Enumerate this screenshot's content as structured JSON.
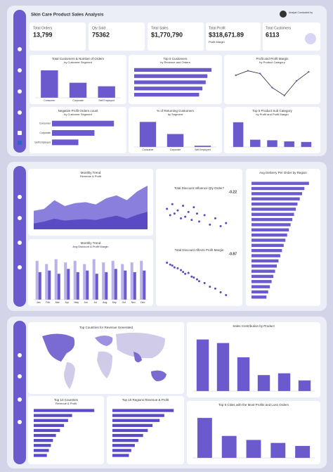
{
  "header": {
    "title": "Skin Care Product Sales Analysis",
    "analyst": "Analyst Conducted by"
  },
  "kpis": [
    {
      "label": "Total Orders",
      "value": "13,799"
    },
    {
      "label": "Qty Sold",
      "value": "75362"
    },
    {
      "label": "Total Sales",
      "value": "$1,770,790"
    },
    {
      "label": "Total Profit",
      "value": "$318,671.89",
      "sub": "Profit Margin"
    },
    {
      "label": "Total Customers",
      "value": "6113"
    }
  ],
  "map": {
    "title": "Top Countries for Revenue Generated"
  },
  "chart_data": [
    {
      "type": "bar",
      "title": "Total Customers & Number of Orders",
      "subtitle": "by Customer Segment",
      "categories": [
        "Consumer",
        "Corporate",
        "Self Employed"
      ],
      "values": [
        3100,
        1700,
        1300
      ],
      "color": "#6a5acd",
      "ylim": [
        0,
        3500
      ]
    },
    {
      "type": "hbar",
      "title": "Top 5 Customers",
      "subtitle": "by Revenue and Orders",
      "categories": [
        null,
        null,
        null,
        null,
        null
      ],
      "values": [
        9400,
        8900,
        8700,
        8300,
        7900
      ],
      "color": "#6a5acd",
      "xlim": [
        0,
        10000
      ]
    },
    {
      "type": "line",
      "title": "Profit and Profit Margin",
      "subtitle": "by Product Category",
      "categories": [
        null,
        null,
        null,
        null,
        null,
        null,
        null
      ],
      "values": [
        30,
        38,
        33,
        8,
        -6,
        20,
        36
      ],
      "color": "#2b2b2b",
      "ylim": [
        -10,
        45
      ]
    },
    {
      "type": "hbar",
      "title": "Negative Profit Orders count",
      "subtitle": "by Customer Segment",
      "title_color": "#c0392b",
      "categories": [
        "Consumer",
        "Corporate",
        "Self Employed"
      ],
      "values": [
        540,
        370,
        230
      ],
      "color": "#6a5acd",
      "xlim": [
        0,
        600
      ]
    },
    {
      "type": "bar",
      "title": "% of Returning Customers",
      "subtitle": "by Segment",
      "categories": [
        "Consumer",
        "Corporate",
        "Self Employed"
      ],
      "values": [
        58,
        30,
        3
      ],
      "color": "#6a5acd",
      "ylim": [
        0,
        65
      ]
    },
    {
      "type": "bar",
      "title": "Top 5 Product Sub Category",
      "subtitle": "by Profit and Profit Margin",
      "categories": [
        null,
        null,
        null,
        null,
        null
      ],
      "values": [
        44,
        13,
        12,
        10,
        9
      ],
      "color": "#6a5acd",
      "ylim": [
        0,
        50
      ]
    },
    {
      "type": "area",
      "title": "Monthly Trend",
      "subtitle": "Revenue & Profit",
      "categories": [
        null,
        null,
        null,
        null,
        null,
        null,
        null,
        null,
        null,
        null,
        null,
        null
      ],
      "series": [
        {
          "color": "#8a7fdc",
          "values": [
            95,
            105,
            150,
            120,
            135,
            140,
            128,
            160,
            175,
            150,
            195,
            225
          ]
        },
        {
          "color": "#5a4bc4",
          "values": [
            30,
            40,
            55,
            45,
            50,
            52,
            48,
            60,
            70,
            55,
            75,
            90
          ]
        }
      ],
      "ylim": [
        0,
        250
      ]
    },
    {
      "type": "bar",
      "title": "Monthly Trend",
      "subtitle": "Avg Discount & Profit Margin",
      "categories": [
        "Jan",
        "Feb",
        "Mar",
        "Apr",
        "May",
        "Jun",
        "Jul",
        "Aug",
        "Sep",
        "Oct",
        "Nov",
        "Dec"
      ],
      "series": [
        {
          "color": "#b9b3ea",
          "values": [
            24,
            22,
            25,
            23,
            24,
            22,
            25,
            23,
            24,
            22,
            23,
            24
          ]
        },
        {
          "color": "#6a5acd",
          "values": [
            17,
            18,
            16,
            19,
            17,
            18,
            16,
            17,
            19,
            18,
            17,
            18
          ]
        }
      ],
      "ylim": [
        0,
        30
      ]
    },
    {
      "type": "scatter",
      "title": "Total Discount Influence Qty Order?",
      "annotation": "-0.22",
      "x": [
        0.05,
        0.08,
        0.1,
        0.12,
        0.15,
        0.18,
        0.2,
        0.22,
        0.25,
        0.28,
        0.3,
        0.33,
        0.35,
        0.4,
        0.45,
        0.5,
        0.55,
        0.6
      ],
      "values": [
        4.2,
        3.8,
        4.5,
        3.9,
        4.1,
        3.6,
        4.4,
        3.7,
        4.0,
        3.5,
        4.3,
        3.9,
        3.4,
        3.8,
        3.2,
        3.6,
        3.1,
        3.3
      ],
      "color": "#5a4bc4",
      "xlim": [
        0,
        0.7
      ],
      "ylim": [
        2.5,
        5
      ]
    },
    {
      "type": "scatter",
      "title": "Total Discount Affects Profit Margin",
      "annotation": "-0.87",
      "x": [
        0.05,
        0.08,
        0.1,
        0.12,
        0.15,
        0.18,
        0.2,
        0.22,
        0.25,
        0.28,
        0.3,
        0.33,
        0.35,
        0.4,
        0.45,
        0.5,
        0.55,
        0.6
      ],
      "values": [
        30,
        28,
        27,
        25,
        24,
        22,
        20,
        18,
        19,
        15,
        14,
        12,
        10,
        8,
        4,
        2,
        -2,
        -5
      ],
      "color": "#5a4bc4",
      "xlim": [
        0,
        0.7
      ],
      "ylim": [
        -10,
        35
      ]
    },
    {
      "type": "hbar",
      "title": "Avg Delivery Per Order by Region",
      "categories": [
        null,
        null,
        null,
        null,
        null,
        null,
        null,
        null,
        null,
        null,
        null,
        null,
        null,
        null,
        null,
        null,
        null,
        null,
        null,
        null,
        null,
        null,
        null
      ],
      "values": [
        100,
        92,
        88,
        84,
        80,
        77,
        74,
        71,
        68,
        65,
        62,
        59,
        56,
        53,
        50,
        47,
        44,
        41,
        38,
        35,
        32,
        29,
        26
      ],
      "color": "#6a5acd",
      "xlim": [
        0,
        110
      ]
    },
    {
      "type": "hbar",
      "title": "Top 10 Countries",
      "subtitle": "Revenue & Profit",
      "categories": [
        null,
        null,
        null,
        null,
        null,
        null,
        null,
        null,
        null,
        null
      ],
      "values": [
        300,
        190,
        170,
        150,
        130,
        110,
        95,
        85,
        75,
        65
      ],
      "color": "#5a4bc4",
      "xlim": [
        0,
        320
      ]
    },
    {
      "type": "hbar",
      "title": "Top 10 Regions Revenue & Profit",
      "categories": [
        null,
        null,
        null,
        null,
        null,
        null,
        null,
        null,
        null,
        null
      ],
      "values": [
        260,
        220,
        200,
        170,
        150,
        130,
        110,
        95,
        80,
        70
      ],
      "color": "#5a4bc4",
      "xlim": [
        0,
        280
      ]
    },
    {
      "type": "bar",
      "title": "Sales Contribution by Product",
      "categories": [
        null,
        null,
        null,
        null,
        null,
        null
      ],
      "values": [
        29,
        27,
        19,
        9,
        10,
        6
      ],
      "color": "#6a5acd",
      "ylim": [
        0,
        32
      ]
    },
    {
      "type": "bar",
      "title": "Top 5 Cities with the Most Profits and Loss Orders",
      "categories": [
        null,
        null,
        null,
        null,
        null
      ],
      "values": [
        40,
        22,
        18,
        15,
        12
      ],
      "color": "#6a5acd",
      "ylim": [
        0,
        45
      ]
    }
  ]
}
